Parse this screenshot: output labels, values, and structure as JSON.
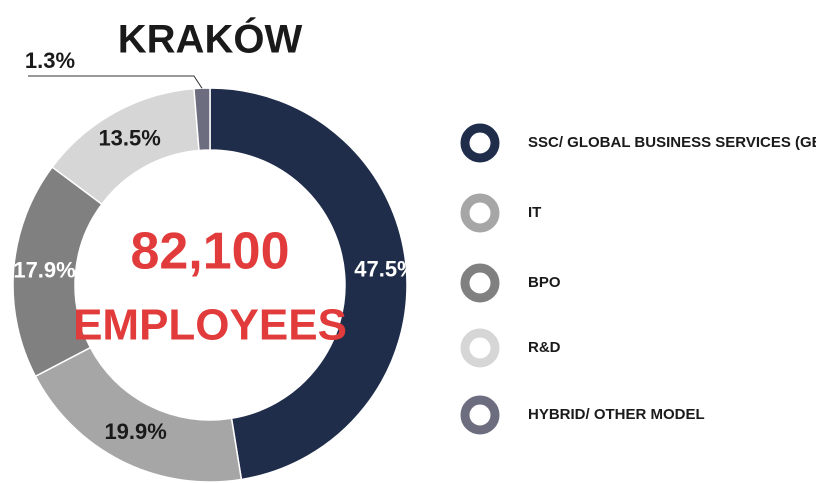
{
  "chart_data": {
    "type": "donut",
    "title": "KRAKÓW",
    "center_text": [
      "82,100",
      "EMPLOYEES"
    ],
    "categories": [
      "SSC/ GLOBAL BUSINESS SERVICES (GBS)",
      "IT",
      "BPO",
      "R&D",
      "HYBRID/ OTHER MODEL"
    ],
    "values": [
      47.5,
      19.9,
      17.9,
      13.5,
      1.3
    ],
    "value_labels": [
      "47.5%",
      "19.9%",
      "17.9%",
      "13.5%",
      "1.3%"
    ],
    "colors": [
      "#1f2d4a",
      "#a6a6a6",
      "#808080",
      "#d6d6d6",
      "#6d6d80"
    ],
    "center_color": "#e23b3b"
  }
}
